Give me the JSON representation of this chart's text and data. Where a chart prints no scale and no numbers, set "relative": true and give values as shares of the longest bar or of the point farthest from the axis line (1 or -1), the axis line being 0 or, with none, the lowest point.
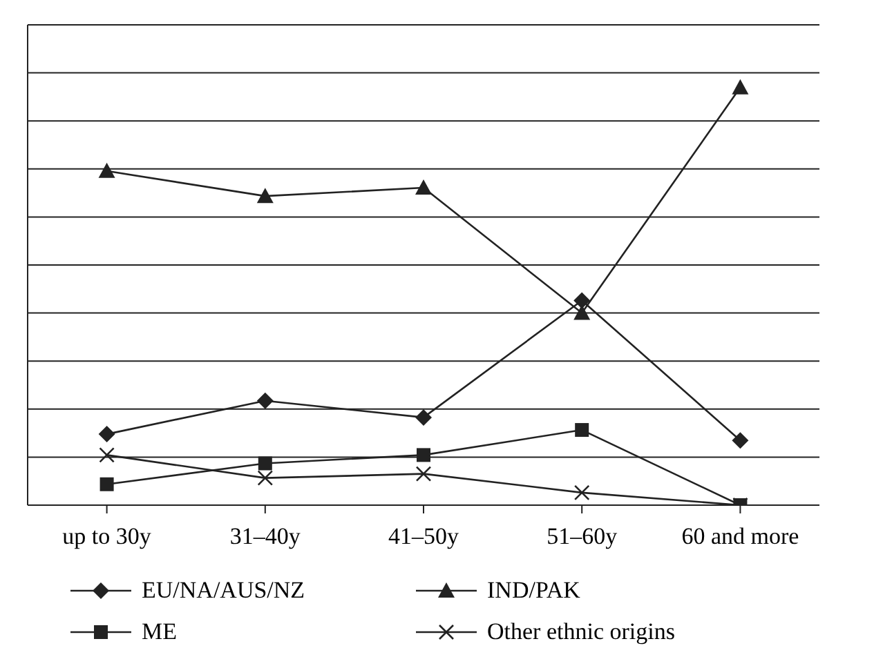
{
  "chart_data": {
    "type": "line",
    "relative": true,
    "categories": [
      "up to 30y",
      "31–40y",
      "41–50y",
      "51–60y",
      "60 and more"
    ],
    "grid": "y",
    "legend": "bottom",
    "series": [
      {
        "name": "EU/NA/AUS/NZ",
        "color": "#222222",
        "marker": "diamond",
        "values": [
          0.17,
          0.25,
          0.21,
          0.49,
          0.155
        ]
      },
      {
        "name": "IND/PAK",
        "color": "#222222",
        "marker": "triangle",
        "values": [
          0.8,
          0.74,
          0.76,
          0.46,
          1
        ]
      },
      {
        "name": "ME",
        "color": "#222222",
        "marker": "square",
        "values": [
          0.05,
          0.1,
          0.12,
          0.18,
          0
        ]
      },
      {
        "name": "Other ethnic origins",
        "color": "#222222",
        "marker": "cross",
        "values": [
          0.12,
          0.065,
          0.075,
          0.03,
          0
        ]
      }
    ]
  }
}
